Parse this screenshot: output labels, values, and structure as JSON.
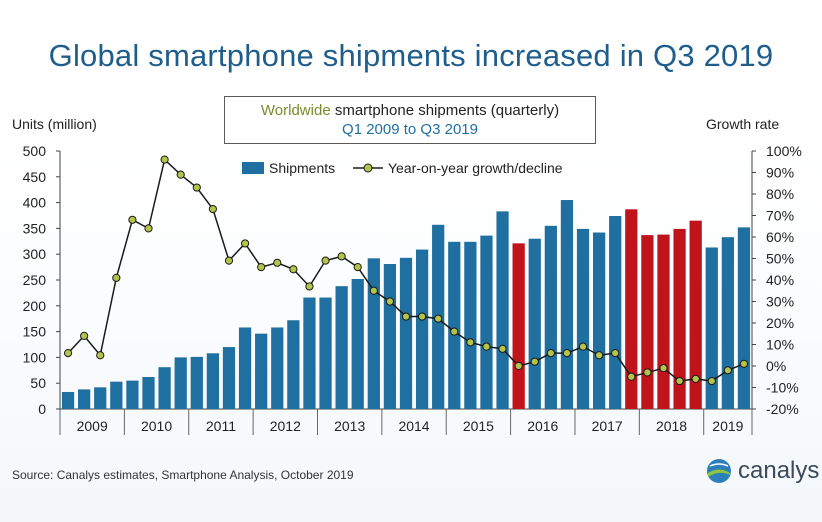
{
  "title": "Global smartphone shipments increased in Q3 2019",
  "subtitle": {
    "highlight": "Worldwide",
    "rest": " smartphone shipments (quarterly)",
    "line2": "Q1 2009 to Q3 2019"
  },
  "source": "Source: Canalys estimates, Smartphone Analysis, October 2019",
  "logo_text": "canalys",
  "colors": {
    "blue": "#1f6fa0",
    "red": "#c0131b",
    "line": "#1a1a1a",
    "marker": "#b4c44a",
    "title": "#1f5e8c"
  },
  "chart_data": {
    "type": "bar",
    "title": "Worldwide smartphone shipments (quarterly)",
    "subtitle": "Q1 2009 to Q3 2019",
    "ylabel": "Units (million)",
    "y2label": "Growth rate",
    "ylim": [
      0,
      500
    ],
    "y2lim": [
      -20,
      100
    ],
    "yticks": [
      "0",
      "50",
      "100",
      "150",
      "200",
      "250",
      "300",
      "350",
      "400",
      "450",
      "500"
    ],
    "y2ticks": [
      "-20%",
      "-10%",
      "0%",
      "10%",
      "20%",
      "30%",
      "40%",
      "50%",
      "60%",
      "70%",
      "80%",
      "90%",
      "100%"
    ],
    "years": [
      "2009",
      "2010",
      "2011",
      "2012",
      "2013",
      "2014",
      "2015",
      "2016",
      "2017",
      "2018",
      "2019"
    ],
    "legend": [
      "Shipments",
      "Year-on-year growth/decline"
    ],
    "shipments": [
      33,
      38,
      42,
      53,
      55,
      62,
      81,
      100,
      101,
      108,
      120,
      158,
      146,
      158,
      172,
      216,
      216,
      238,
      252,
      292,
      281,
      293,
      309,
      357,
      324,
      324,
      336,
      383,
      321,
      330,
      355,
      405,
      349,
      342,
      374,
      387,
      337,
      338,
      349,
      365,
      313,
      333,
      352
    ],
    "bar_colors": [
      "blue",
      "blue",
      "blue",
      "blue",
      "blue",
      "blue",
      "blue",
      "blue",
      "blue",
      "blue",
      "blue",
      "blue",
      "blue",
      "blue",
      "blue",
      "blue",
      "blue",
      "blue",
      "blue",
      "blue",
      "blue",
      "blue",
      "blue",
      "blue",
      "blue",
      "blue",
      "blue",
      "blue",
      "red",
      "blue",
      "blue",
      "blue",
      "blue",
      "blue",
      "blue",
      "red",
      "red",
      "red",
      "red",
      "red",
      "blue",
      "blue",
      "blue"
    ],
    "growth": [
      6,
      14,
      5,
      41,
      68,
      64,
      96,
      89,
      83,
      73,
      49,
      57,
      46,
      48,
      45,
      37,
      49,
      51,
      46,
      35,
      30,
      23,
      23,
      22,
      16,
      11,
      9,
      8,
      0,
      2,
      6,
      6,
      9,
      5,
      6,
      -5,
      -3,
      -1,
      -7,
      -6,
      -7,
      -2,
      1
    ]
  }
}
